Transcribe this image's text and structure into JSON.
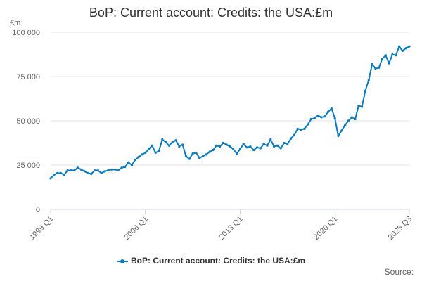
{
  "colors": {
    "series": "#0b7bbf"
  },
  "chart_data": {
    "type": "line",
    "title": "BoP: Current account: Credits: the USA:£m",
    "ylabel": "£m",
    "ylim": [
      0,
      100000
    ],
    "yticks": [
      0,
      25000,
      50000,
      75000,
      100000
    ],
    "ytick_labels": [
      "0",
      "25 000",
      "50 000",
      "75 000",
      "100 000"
    ],
    "xtick_labels": [
      "1999 Q1",
      "2006 Q1",
      "2013 Q1",
      "2020 Q1",
      "2025 Q3"
    ],
    "xtick_index": [
      0,
      28,
      56,
      84,
      106
    ],
    "grid": true,
    "legend_position": "bottom",
    "series": [
      {
        "name": "BoP: Current account: Credits: the USA:£m",
        "values": [
          17500,
          19500,
          20500,
          20500,
          19500,
          22000,
          22000,
          22000,
          23500,
          22500,
          21500,
          20500,
          20000,
          22000,
          22000,
          20500,
          21500,
          22000,
          22500,
          22500,
          22000,
          23500,
          24000,
          26500,
          25000,
          28000,
          29500,
          31000,
          32000,
          34000,
          36000,
          32000,
          33000,
          39500,
          38000,
          36000,
          38000,
          39000,
          35500,
          36500,
          30000,
          28500,
          31500,
          32000,
          29000,
          30000,
          31000,
          32500,
          33500,
          36000,
          35500,
          37500,
          36500,
          35500,
          34000,
          31500,
          34000,
          37000,
          35000,
          35500,
          33500,
          35000,
          34500,
          37000,
          36000,
          39500,
          35500,
          36000,
          34500,
          37500,
          37000,
          40000,
          42000,
          45500,
          45000,
          45500,
          48000,
          51000,
          51500,
          53000,
          52000,
          52500,
          55000,
          57000,
          51500,
          41500,
          44500,
          47500,
          50000,
          52000,
          51000,
          58500,
          58000,
          67000,
          73000,
          82000,
          79500,
          80000,
          85000,
          87000,
          82500,
          87500,
          87000,
          92000,
          89500,
          91000,
          92000
        ]
      }
    ]
  },
  "legend": {
    "label": "BoP: Current account: Credits: the USA:£m"
  },
  "footer": {
    "source": "Source:"
  }
}
